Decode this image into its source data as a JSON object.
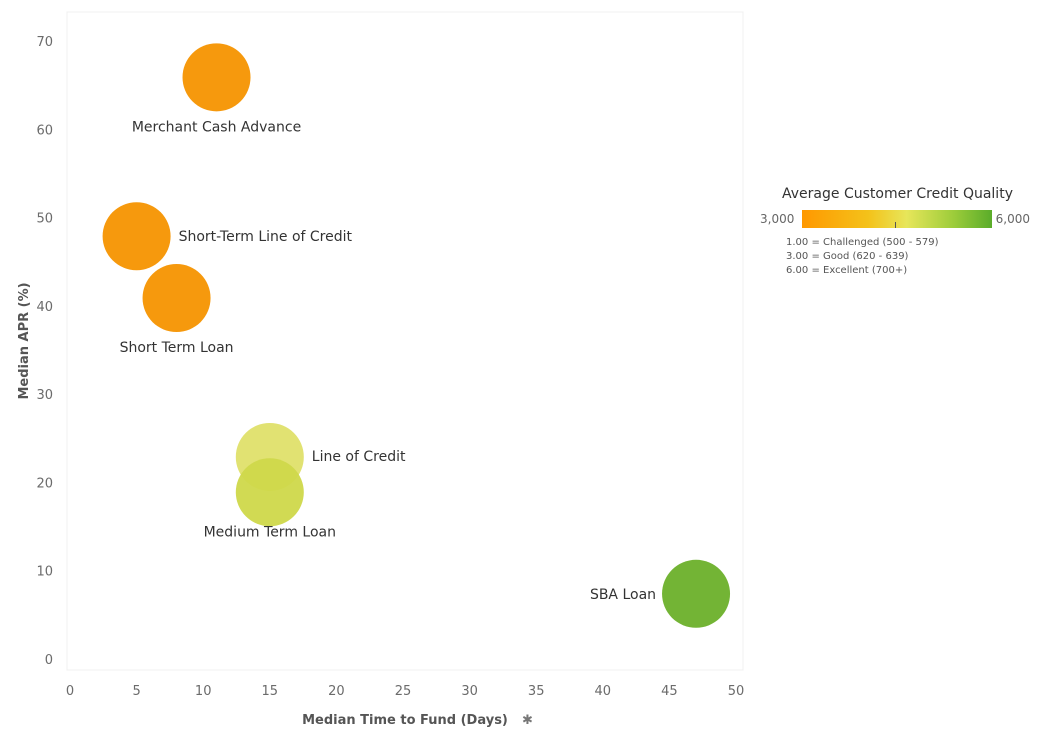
{
  "chart_data": {
    "type": "scatter",
    "xlabel": "Median Time to Fund (Days)",
    "ylabel": "Median APR (%)",
    "xlim": [
      0,
      50
    ],
    "ylim": [
      0,
      70
    ],
    "xticks": [
      "0",
      "5",
      "10",
      "15",
      "20",
      "25",
      "30",
      "35",
      "40",
      "45",
      "50"
    ],
    "yticks": [
      "0",
      "10",
      "20",
      "30",
      "40",
      "50",
      "60",
      "70"
    ],
    "grid": false,
    "points": [
      {
        "label": "Merchant Cash Advance",
        "x": 11,
        "y": 66,
        "credit_quality": 3000,
        "color": "#f59300"
      },
      {
        "label": "Short-Term Line of Credit",
        "x": 5,
        "y": 48,
        "credit_quality": 3000,
        "color": "#f59300"
      },
      {
        "label": "Short Term Loan",
        "x": 8,
        "y": 41,
        "credit_quality": 3000,
        "color": "#f59300"
      },
      {
        "label": "Line of Credit",
        "x": 15,
        "y": 23,
        "credit_quality": 4800,
        "color": "#dfe06a"
      },
      {
        "label": "Medium Term Loan",
        "x": 15,
        "y": 19,
        "credit_quality": 4700,
        "color": "#cfd84a"
      },
      {
        "label": "SBA Loan",
        "x": 47,
        "y": 7.5,
        "credit_quality": 6000,
        "color": "#6cb02a"
      }
    ],
    "legend": {
      "title": "Average Customer Credit Quality",
      "min": "3,000",
      "max": "6,000",
      "placement": "right",
      "notes": [
        "1.00 = Challenged (500 - 579)",
        "3.00 = Good (620 - 639)",
        "6.00 = Excellent (700+)"
      ]
    }
  },
  "icons": {
    "x_axis_pin": "pin-icon"
  }
}
